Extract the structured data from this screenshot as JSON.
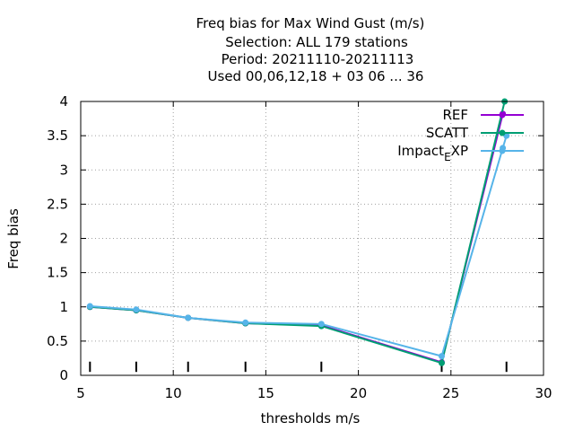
{
  "chart_data": {
    "type": "line",
    "title_lines": [
      "Freq bias  for Max Wind Gust (m/s)",
      "Selection: ALL    179 stations",
      "Period: 20211110-20211113",
      "Used  00,06,12,18 + 03 06 ... 36"
    ],
    "xlabel": "thresholds m/s",
    "ylabel": "Freq bias",
    "xlim": [
      5,
      30
    ],
    "ylim": [
      0,
      4
    ],
    "xticks": [
      5,
      10,
      15,
      20,
      25,
      30
    ],
    "xtick_labels": [
      "5",
      "10",
      "15",
      "20",
      "25",
      "30"
    ],
    "yticks": [
      0,
      0.5,
      1,
      1.5,
      2,
      2.5,
      3,
      3.5,
      4
    ],
    "ytick_labels": [
      "0",
      "0.5",
      "1",
      "1.5",
      "2",
      "2.5",
      "3",
      "3.5",
      "4"
    ],
    "grid": true,
    "legend_position": "top-right",
    "threshold_markers": [
      5.5,
      8.0,
      10.8,
      13.9,
      18.0,
      24.5,
      28.0
    ],
    "series": [
      {
        "name": "REF",
        "color": "#9400d3",
        "x": [
          5.5,
          8.0,
          10.8,
          13.9,
          18.0,
          24.5,
          27.8
        ],
        "y": [
          1.0,
          0.95,
          0.84,
          0.76,
          0.73,
          0.19,
          3.82
        ]
      },
      {
        "name": "SCATT",
        "color": "#009e73",
        "x": [
          5.5,
          8.0,
          10.8,
          13.9,
          18.0,
          24.5,
          27.9
        ],
        "y": [
          1.0,
          0.95,
          0.84,
          0.76,
          0.72,
          0.18,
          4.0
        ]
      },
      {
        "name": "Impact",
        "name_subscript": "E",
        "name_suffix": "XP",
        "color": "#56b4e9",
        "x": [
          5.5,
          8.0,
          10.8,
          13.9,
          18.0,
          24.5,
          27.8,
          28.0
        ],
        "y": [
          1.01,
          0.96,
          0.84,
          0.77,
          0.75,
          0.28,
          3.32,
          3.5
        ]
      }
    ]
  }
}
